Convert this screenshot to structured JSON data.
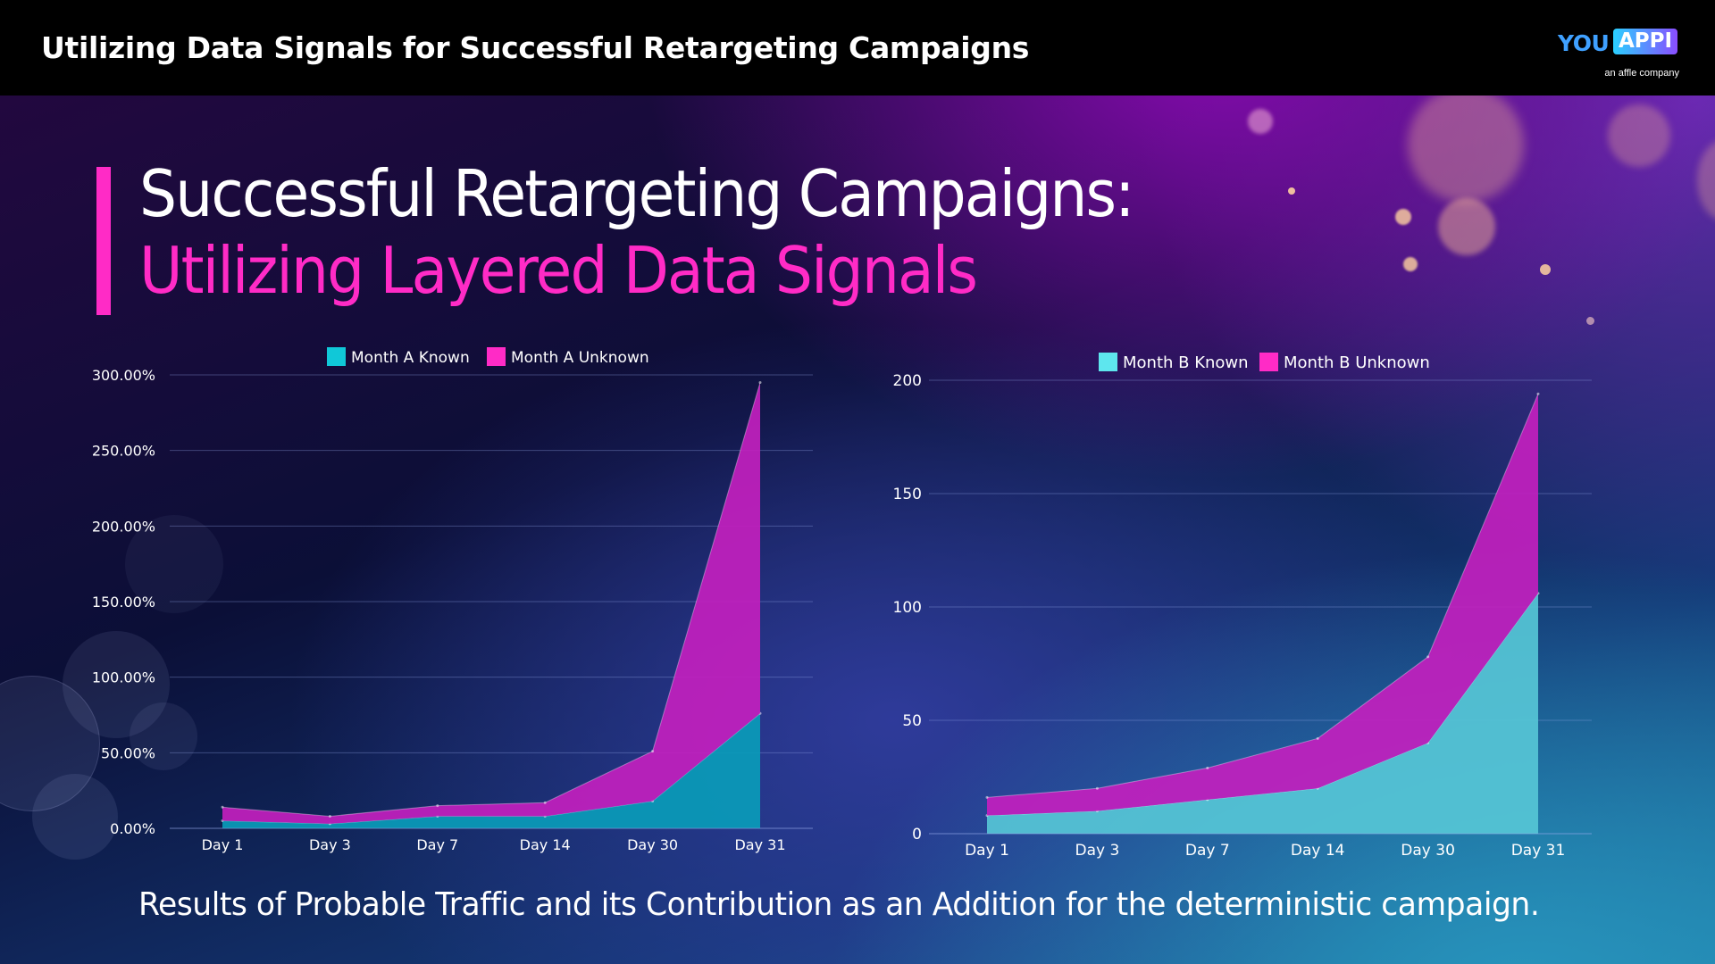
{
  "header": {
    "title": "Utilizing Data Signals for Successful Retargeting Campaigns"
  },
  "logo": {
    "you": "YOU",
    "appi": "APPI",
    "tagline": "an affle company"
  },
  "headline": {
    "line1": "Successful Retargeting Campaigns:",
    "line2": "Utilizing Layered Data Signals"
  },
  "caption": "Results of Probable Traffic and its Contribution as an Addition for the deterministic campaign.",
  "colors": {
    "accent": "#ff2bc6",
    "known_a": "#0a9bb8",
    "known_b": "#56c6d6",
    "unknown": "#c21fbe"
  },
  "chart_data": [
    {
      "type": "area",
      "stacked": true,
      "categories": [
        "Day 1",
        "Day 3",
        "Day 7",
        "Day 14",
        "Day 30",
        "Day 31"
      ],
      "series": [
        {
          "name": "Month A Known",
          "values": [
            5,
            3,
            8,
            8,
            18,
            76
          ],
          "color": "#0a9bb8",
          "legend_color": "#10c8d8"
        },
        {
          "name": "Month A Unknown",
          "values": [
            9,
            5,
            7,
            9,
            33,
            219
          ],
          "color": "#c21fbe",
          "legend_color": "#ff2bc6"
        }
      ],
      "ylim": [
        0,
        300
      ],
      "yticks": [
        "0.00%",
        "50.00%",
        "100.00%",
        "150.00%",
        "200.00%",
        "250.00%",
        "300.00%"
      ],
      "legend": "top-center",
      "grid": true
    },
    {
      "type": "area",
      "stacked": true,
      "categories": [
        "Day 1",
        "Day 3",
        "Day 7",
        "Day 14",
        "Day 30",
        "Day 31"
      ],
      "series": [
        {
          "name": "Month B Known",
          "values": [
            8,
            10,
            15,
            20,
            40,
            106
          ],
          "color": "#56c6d6",
          "legend_color": "#5ee6ee"
        },
        {
          "name": "Month B Unknown",
          "values": [
            8,
            10,
            14,
            22,
            38,
            88
          ],
          "color": "#c21fbe",
          "legend_color": "#ff2bc6"
        }
      ],
      "ylim": [
        0,
        200
      ],
      "yticks": [
        "0",
        "50",
        "100",
        "150",
        "200"
      ],
      "legend": "top-center",
      "grid": true
    }
  ]
}
